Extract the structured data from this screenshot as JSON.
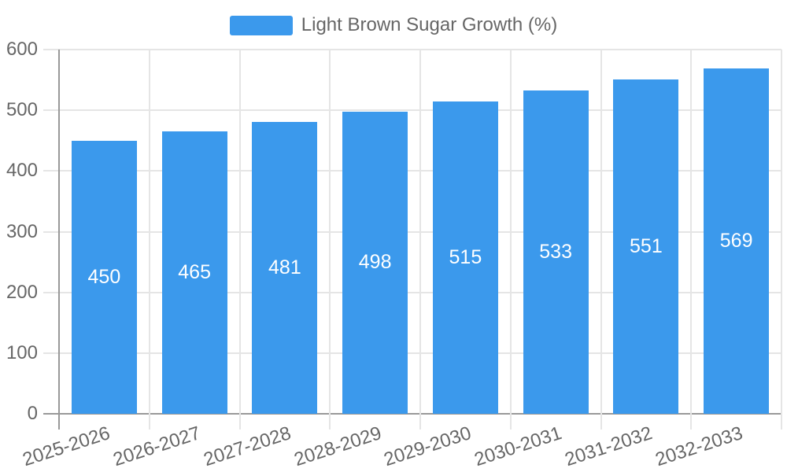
{
  "chart_data": {
    "type": "bar",
    "title": "",
    "legend": [
      "Light Brown Sugar Growth (%)"
    ],
    "legend_position": "top-center",
    "categories": [
      "2025-2026",
      "2026-2027",
      "2027-2028",
      "2028-2029",
      "2029-2030",
      "2030-2031",
      "2031-2032",
      "2032-2033"
    ],
    "series": [
      {
        "name": "Light Brown Sugar Growth (%)",
        "values": [
          450,
          465,
          481,
          498,
          515,
          533,
          551,
          569
        ]
      }
    ],
    "xlabel": "",
    "ylabel": "",
    "ylim": [
      0,
      600
    ],
    "yticks": [
      0,
      100,
      200,
      300,
      400,
      500,
      600
    ],
    "grid": true,
    "bar_label_position": "inside-middle",
    "colors": {
      "bar": "#3B99EC",
      "bar_label": "#FFFFFF",
      "axis_text": "#666666",
      "grid_line": "#E5E5E5",
      "axis_line": "#999999"
    }
  }
}
